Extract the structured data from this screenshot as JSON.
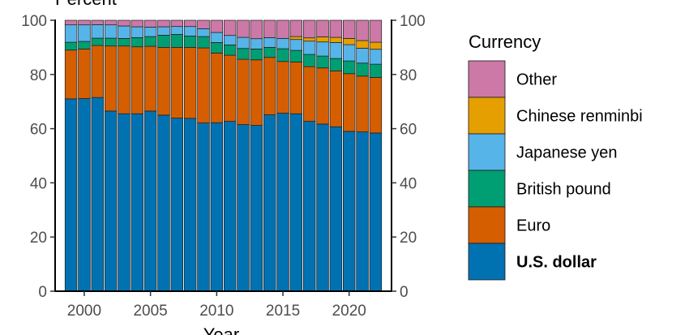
{
  "chart_data": {
    "type": "bar",
    "stacked": true,
    "ylabel": "Percent",
    "xlabel": "Year",
    "ylim": [
      0,
      100
    ],
    "yticks": [
      0,
      20,
      40,
      60,
      80,
      100
    ],
    "xtick_labels": [
      "2000",
      "2005",
      "2010",
      "2015",
      "2020"
    ],
    "legend_title": "Currency",
    "categories": [
      1999,
      2000,
      2001,
      2002,
      2003,
      2004,
      2005,
      2006,
      2007,
      2008,
      2009,
      2010,
      2011,
      2012,
      2013,
      2014,
      2015,
      2016,
      2017,
      2018,
      2019,
      2020,
      2021,
      2022
    ],
    "series": [
      {
        "name": "U.S. dollar",
        "color": "#0072B2",
        "bold": true,
        "values": [
          71,
          71.1,
          71.5,
          66.5,
          65.5,
          65.5,
          66.5,
          65,
          63.9,
          63.8,
          62.1,
          62.2,
          62.7,
          61.5,
          61.2,
          65.1,
          65.7,
          65.5,
          62.7,
          61.7,
          60.7,
          59,
          58.8,
          58.4
        ]
      },
      {
        "name": "Euro",
        "color": "#D55E00",
        "bold": false,
        "values": [
          18,
          18.3,
          19.2,
          24,
          25,
          24.7,
          23.9,
          25,
          26.1,
          26.2,
          27.7,
          25.7,
          24.4,
          24.1,
          24.2,
          21.2,
          19.1,
          19.1,
          20.2,
          20.7,
          20.6,
          21.3,
          20.6,
          20.5
        ]
      },
      {
        "name": "British pound",
        "color": "#009E73",
        "bold": false,
        "values": [
          2.9,
          2.8,
          2.7,
          2.9,
          2.8,
          3.4,
          3.6,
          4.5,
          4.8,
          4.2,
          4.2,
          3.9,
          3.8,
          4,
          4,
          3.7,
          4.7,
          4.3,
          4.5,
          4.4,
          4.6,
          4.7,
          4.8,
          4.9
        ]
      },
      {
        "name": "Japanese yen",
        "color": "#56B4E9",
        "bold": false,
        "values": [
          6.4,
          6.1,
          5,
          4.9,
          4.6,
          4,
          3.5,
          3.1,
          2.9,
          3.5,
          2.9,
          3.7,
          3.5,
          4.1,
          3.8,
          3.6,
          3.8,
          4,
          4.9,
          5.2,
          5.9,
          6,
          5.5,
          5.5
        ]
      },
      {
        "name": "Chinese renminbi",
        "color": "#E69F00",
        "bold": false,
        "values": [
          0,
          0,
          0,
          0,
          0,
          0,
          0,
          0,
          0,
          0,
          0,
          0,
          0,
          0,
          0,
          0,
          0,
          1.1,
          1.2,
          1.9,
          1.9,
          2.3,
          2.8,
          2.6
        ]
      },
      {
        "name": "Other",
        "color": "#CC79A7",
        "bold": false,
        "values": [
          1.7,
          1.7,
          1.6,
          1.7,
          2.1,
          2.4,
          2.5,
          2.4,
          2.3,
          2.3,
          3.1,
          4.5,
          5.6,
          6.3,
          6.8,
          6.4,
          6.7,
          6,
          6.5,
          6.1,
          6.3,
          6.7,
          7.5,
          8.1
        ]
      }
    ]
  }
}
